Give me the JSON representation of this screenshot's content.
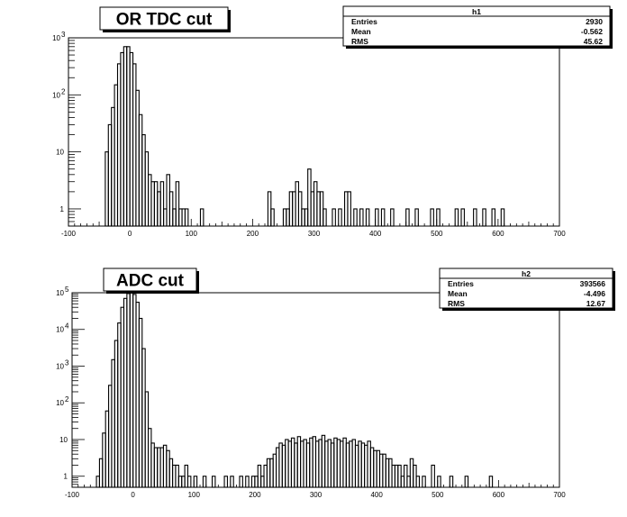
{
  "chart_data": [
    {
      "type": "bar",
      "title": "OR TDC cut",
      "yscale": "log",
      "xlim": [
        -100,
        700
      ],
      "ylim": [
        0.5,
        1000
      ],
      "x_ticks": [
        -100,
        0,
        100,
        200,
        300,
        400,
        500,
        600,
        700
      ],
      "x_tick_labels": [
        "-100",
        "0",
        "100",
        "200",
        "300",
        "400",
        "500",
        "600",
        "700"
      ],
      "y_tick_labels": [
        {
          "value": 1,
          "base": "1",
          "exp": ""
        },
        {
          "value": 10,
          "base": "10",
          "exp": ""
        },
        {
          "value": 100,
          "base": "10",
          "exp": "2"
        },
        {
          "value": 1000,
          "base": "10",
          "exp": "3"
        }
      ],
      "stats": {
        "name": "h1",
        "rows": [
          {
            "label": "Entries",
            "value": "2930"
          },
          {
            "label": "Mean",
            "value": "-0.562"
          },
          {
            "label": "RMS",
            "value": "45.62"
          }
        ]
      },
      "bin_width": 5,
      "bins": [
        [
          -40,
          10
        ],
        [
          -35,
          30
        ],
        [
          -30,
          60
        ],
        [
          -25,
          150
        ],
        [
          -20,
          350
        ],
        [
          -15,
          550
        ],
        [
          -10,
          700
        ],
        [
          -5,
          700
        ],
        [
          0,
          550
        ],
        [
          5,
          350
        ],
        [
          10,
          120
        ],
        [
          15,
          45
        ],
        [
          20,
          20
        ],
        [
          25,
          10
        ],
        [
          30,
          4
        ],
        [
          35,
          3
        ],
        [
          40,
          3
        ],
        [
          45,
          2
        ],
        [
          50,
          3
        ],
        [
          55,
          1
        ],
        [
          60,
          4
        ],
        [
          65,
          2
        ],
        [
          70,
          1
        ],
        [
          75,
          3
        ],
        [
          80,
          1
        ],
        [
          85,
          1
        ],
        [
          90,
          1
        ],
        [
          115,
          1
        ],
        [
          225,
          2
        ],
        [
          230,
          1
        ],
        [
          250,
          1
        ],
        [
          255,
          1
        ],
        [
          260,
          2
        ],
        [
          265,
          2
        ],
        [
          270,
          3
        ],
        [
          275,
          2
        ],
        [
          280,
          1
        ],
        [
          285,
          1
        ],
        [
          290,
          5
        ],
        [
          295,
          2
        ],
        [
          300,
          3
        ],
        [
          305,
          2
        ],
        [
          310,
          2
        ],
        [
          315,
          1
        ],
        [
          330,
          1
        ],
        [
          340,
          1
        ],
        [
          350,
          2
        ],
        [
          355,
          2
        ],
        [
          365,
          1
        ],
        [
          375,
          1
        ],
        [
          385,
          1
        ],
        [
          400,
          1
        ],
        [
          410,
          1
        ],
        [
          425,
          1
        ],
        [
          450,
          1
        ],
        [
          465,
          1
        ],
        [
          490,
          1
        ],
        [
          500,
          1
        ],
        [
          530,
          1
        ],
        [
          540,
          1
        ],
        [
          560,
          1
        ],
        [
          575,
          1
        ],
        [
          590,
          1
        ],
        [
          605,
          1
        ]
      ]
    },
    {
      "type": "bar",
      "title": "ADC cut",
      "yscale": "log",
      "xlim": [
        -100,
        700
      ],
      "ylim": [
        0.5,
        100000
      ],
      "x_ticks": [
        -100,
        0,
        100,
        200,
        300,
        400,
        500,
        600,
        700
      ],
      "x_tick_labels": [
        "-100",
        "0",
        "100",
        "200",
        "300",
        "400",
        "500",
        "600",
        "700"
      ],
      "y_tick_labels": [
        {
          "value": 1,
          "base": "1",
          "exp": ""
        },
        {
          "value": 10,
          "base": "10",
          "exp": ""
        },
        {
          "value": 100,
          "base": "10",
          "exp": "2"
        },
        {
          "value": 1000,
          "base": "10",
          "exp": "3"
        },
        {
          "value": 10000,
          "base": "10",
          "exp": "4"
        },
        {
          "value": 100000,
          "base": "10",
          "exp": "5"
        }
      ],
      "stats": {
        "name": "h2",
        "rows": [
          {
            "label": "Entries",
            "value": "393566"
          },
          {
            "label": "Mean",
            "value": "-4.496"
          },
          {
            "label": "RMS",
            "value": "12.67"
          }
        ]
      },
      "bin_width": 5,
      "bins": [
        [
          -60,
          1
        ],
        [
          -55,
          3
        ],
        [
          -50,
          15
        ],
        [
          -45,
          60
        ],
        [
          -40,
          300
        ],
        [
          -35,
          1500
        ],
        [
          -30,
          5000
        ],
        [
          -25,
          15000
        ],
        [
          -20,
          40000
        ],
        [
          -15,
          70000
        ],
        [
          -10,
          95000
        ],
        [
          -5,
          100000
        ],
        [
          0,
          90000
        ],
        [
          5,
          55000
        ],
        [
          10,
          20000
        ],
        [
          15,
          3000
        ],
        [
          20,
          200
        ],
        [
          25,
          20
        ],
        [
          30,
          8
        ],
        [
          35,
          6
        ],
        [
          40,
          6
        ],
        [
          45,
          6
        ],
        [
          50,
          7
        ],
        [
          55,
          5
        ],
        [
          60,
          3
        ],
        [
          65,
          2
        ],
        [
          70,
          2
        ],
        [
          75,
          1
        ],
        [
          80,
          1
        ],
        [
          85,
          2
        ],
        [
          90,
          1
        ],
        [
          100,
          1
        ],
        [
          115,
          1
        ],
        [
          130,
          1
        ],
        [
          150,
          1
        ],
        [
          160,
          1
        ],
        [
          175,
          1
        ],
        [
          185,
          1
        ],
        [
          195,
          1
        ],
        [
          200,
          1
        ],
        [
          205,
          2
        ],
        [
          210,
          1
        ],
        [
          215,
          2
        ],
        [
          220,
          3
        ],
        [
          225,
          3
        ],
        [
          230,
          4
        ],
        [
          235,
          6
        ],
        [
          240,
          8
        ],
        [
          245,
          7
        ],
        [
          250,
          10
        ],
        [
          255,
          9
        ],
        [
          260,
          11
        ],
        [
          265,
          8
        ],
        [
          270,
          12
        ],
        [
          275,
          9
        ],
        [
          280,
          10
        ],
        [
          285,
          8
        ],
        [
          290,
          11
        ],
        [
          295,
          12
        ],
        [
          300,
          9
        ],
        [
          305,
          10
        ],
        [
          310,
          13
        ],
        [
          315,
          9
        ],
        [
          320,
          10
        ],
        [
          325,
          8
        ],
        [
          330,
          11
        ],
        [
          335,
          10
        ],
        [
          340,
          9
        ],
        [
          345,
          11
        ],
        [
          350,
          8
        ],
        [
          355,
          9
        ],
        [
          360,
          10
        ],
        [
          365,
          7
        ],
        [
          370,
          9
        ],
        [
          375,
          8
        ],
        [
          380,
          7
        ],
        [
          385,
          9
        ],
        [
          390,
          6
        ],
        [
          395,
          5
        ],
        [
          400,
          5
        ],
        [
          405,
          4
        ],
        [
          410,
          4
        ],
        [
          415,
          3
        ],
        [
          420,
          3
        ],
        [
          425,
          2
        ],
        [
          430,
          2
        ],
        [
          435,
          2
        ],
        [
          440,
          1
        ],
        [
          445,
          2
        ],
        [
          450,
          1
        ],
        [
          455,
          3
        ],
        [
          460,
          2
        ],
        [
          465,
          1
        ],
        [
          475,
          1
        ],
        [
          490,
          2
        ],
        [
          500,
          1
        ],
        [
          520,
          1
        ],
        [
          545,
          1
        ],
        [
          585,
          1
        ]
      ]
    }
  ]
}
